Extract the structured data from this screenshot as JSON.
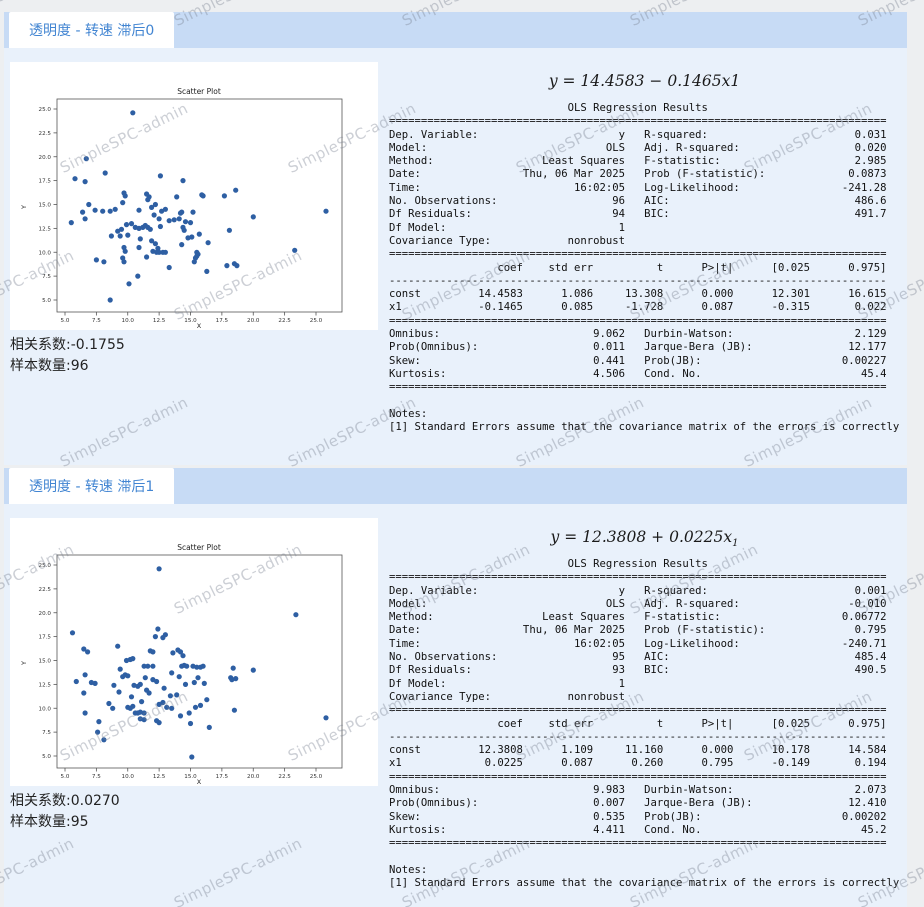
{
  "watermark": {
    "text": "SimpleSPC-admin"
  },
  "colors": {
    "accent_blue": "#4285d2",
    "tabbar_bg": "#c7dbf5",
    "panel_bg": "#e9f1fb",
    "dot": "#2e5fa3"
  },
  "sections": [
    {
      "tab_label": "透明度 - 转速 滞后0",
      "equation": {
        "main": "y = 14.4583 − 0.1465x1",
        "sub": ""
      },
      "correlation_text": "相关系数:-0.1755",
      "sample_text": "样本数量:96",
      "summary_lines": [
        "                            OLS Regression Results                            ",
        "==============================================================================",
        "Dep. Variable:                      y   R-squared:                       0.031",
        "Model:                            OLS   Adj. R-squared:                  0.020",
        "Method:                 Least Squares   F-statistic:                     2.985",
        "Date:                Thu, 06 Mar 2025   Prob (F-statistic):             0.0873",
        "Time:                        16:02:05   Log-Likelihood:                -241.28",
        "No. Observations:                  96   AIC:                             486.6",
        "Df Residuals:                      94   BIC:                             491.7",
        "Df Model:                           1                                         ",
        "Covariance Type:            nonrobust                                         ",
        "==============================================================================",
        "                 coef    std err          t      P>|t|      [0.025      0.975]",
        "------------------------------------------------------------------------------",
        "const         14.4583      1.086     13.308      0.000      12.301      16.615",
        "x1            -0.1465      0.085     -1.728      0.087      -0.315       0.022",
        "==============================================================================",
        "Omnibus:                        9.062   Durbin-Watson:                   2.129",
        "Prob(Omnibus):                  0.011   Jarque-Bera (JB):               12.177",
        "Skew:                           0.441   Prob(JB):                      0.00227",
        "Kurtosis:                       4.506   Cond. No.                         45.4",
        "==============================================================================",
        "",
        "Notes:",
        "[1] Standard Errors assume that the covariance matrix of the errors is correctly"
      ]
    },
    {
      "tab_label": "透明度 - 转速 滞后1",
      "equation": {
        "main": "y = 12.3808 + 0.0225x",
        "sub": "1"
      },
      "correlation_text": "相关系数:0.0270",
      "sample_text": "样本数量:95",
      "summary_lines": [
        "                            OLS Regression Results                            ",
        "==============================================================================",
        "Dep. Variable:                      y   R-squared:                       0.001",
        "Model:                            OLS   Adj. R-squared:                 -0.010",
        "Method:                 Least Squares   F-statistic:                   0.06772",
        "Date:                Thu, 06 Mar 2025   Prob (F-statistic):              0.795",
        "Time:                        16:02:05   Log-Likelihood:                -240.71",
        "No. Observations:                  95   AIC:                             485.4",
        "Df Residuals:                      93   BIC:                             490.5",
        "Df Model:                           1                                         ",
        "Covariance Type:            nonrobust                                         ",
        "==============================================================================",
        "                 coef    std err          t      P>|t|      [0.025      0.975]",
        "------------------------------------------------------------------------------",
        "const         12.3808      1.109     11.160      0.000      10.178      14.584",
        "x1             0.0225      0.087      0.260      0.795      -0.149       0.194",
        "==============================================================================",
        "Omnibus:                        9.983   Durbin-Watson:                   2.073",
        "Prob(Omnibus):                  0.007   Jarque-Bera (JB):               12.410",
        "Skew:                           0.535   Prob(JB):                      0.00202",
        "Kurtosis:                       4.411   Cond. No.                         45.2",
        "==============================================================================",
        "",
        "Notes:",
        "[1] Standard Errors assume that the covariance matrix of the errors is correctly"
      ]
    }
  ],
  "chart_data": [
    {
      "type": "scatter",
      "title": "Scatter Plot",
      "xlabel": "X",
      "ylabel": "Y",
      "xlim": [
        4,
        27
      ],
      "ylim": [
        4,
        26
      ],
      "xticks": [
        5.0,
        7.5,
        10.0,
        12.5,
        15.0,
        17.5,
        20.0,
        22.5,
        25.0
      ],
      "yticks": [
        5.0,
        7.5,
        10.0,
        12.5,
        15.0,
        17.5,
        20.0,
        22.5,
        25.0
      ],
      "points": [
        [
          10.4,
          24.6
        ],
        [
          6.7,
          19.8
        ],
        [
          5.8,
          17.7
        ],
        [
          6.6,
          17.4
        ],
        [
          8.2,
          18.3
        ],
        [
          12.6,
          18.0
        ],
        [
          14.4,
          17.5
        ],
        [
          18.6,
          16.5
        ],
        [
          15.9,
          16.0
        ],
        [
          17.7,
          15.9
        ],
        [
          9.7,
          16.2
        ],
        [
          9.8,
          15.9
        ],
        [
          11.5,
          16.1
        ],
        [
          11.7,
          15.8
        ],
        [
          11.6,
          15.5
        ],
        [
          13.9,
          15.8
        ],
        [
          12.2,
          15.0
        ],
        [
          11.9,
          14.7
        ],
        [
          6.9,
          15.0
        ],
        [
          6.4,
          14.2
        ],
        [
          7.4,
          14.4
        ],
        [
          8.0,
          14.3
        ],
        [
          8.6,
          14.3
        ],
        [
          9.0,
          14.5
        ],
        [
          9.6,
          15.2
        ],
        [
          10.9,
          14.4
        ],
        [
          12.7,
          14.3
        ],
        [
          13.0,
          14.5
        ],
        [
          14.3,
          14.2
        ],
        [
          15.2,
          14.2
        ],
        [
          5.5,
          13.1
        ],
        [
          6.6,
          13.5
        ],
        [
          12.1,
          13.9
        ],
        [
          12.5,
          13.5
        ],
        [
          13.3,
          13.3
        ],
        [
          13.7,
          13.4
        ],
        [
          14.1,
          13.5
        ],
        [
          14.6,
          13.2
        ],
        [
          15.0,
          13.1
        ],
        [
          20.0,
          13.7
        ],
        [
          25.8,
          14.3
        ],
        [
          18.1,
          12.3
        ],
        [
          9.9,
          12.9
        ],
        [
          10.3,
          13.0
        ],
        [
          10.9,
          12.5
        ],
        [
          11.2,
          12.6
        ],
        [
          11.4,
          12.8
        ],
        [
          11.6,
          12.6
        ],
        [
          11.8,
          12.4
        ],
        [
          12.6,
          12.7
        ],
        [
          14.4,
          12.6
        ],
        [
          14.5,
          12.3
        ],
        [
          15.7,
          11.9
        ],
        [
          15.1,
          11.6
        ],
        [
          14.8,
          11.5
        ],
        [
          9.2,
          12.2
        ],
        [
          9.5,
          12.4
        ],
        [
          10.0,
          11.8
        ],
        [
          8.7,
          11.7
        ],
        [
          9.4,
          11.7
        ],
        [
          11.0,
          11.4
        ],
        [
          11.9,
          11.2
        ],
        [
          12.2,
          10.9
        ],
        [
          12.4,
          10.4
        ],
        [
          14.3,
          10.8
        ],
        [
          16.4,
          11.0
        ],
        [
          12.0,
          10.1
        ],
        [
          12.3,
          10.0
        ],
        [
          12.5,
          10.0
        ],
        [
          12.8,
          10.0
        ],
        [
          13.0,
          10.0
        ],
        [
          11.5,
          9.5
        ],
        [
          9.7,
          10.5
        ],
        [
          9.8,
          10.1
        ],
        [
          10.9,
          10.5
        ],
        [
          15.5,
          10.0
        ],
        [
          15.6,
          9.8
        ],
        [
          15.5,
          9.6
        ],
        [
          15.4,
          9.4
        ],
        [
          15.3,
          9.0
        ],
        [
          7.5,
          9.2
        ],
        [
          8.1,
          9.0
        ],
        [
          9.6,
          9.4
        ],
        [
          9.7,
          9.0
        ],
        [
          23.3,
          10.2
        ],
        [
          17.9,
          8.6
        ],
        [
          18.5,
          8.8
        ],
        [
          18.7,
          8.6
        ],
        [
          13.3,
          8.4
        ],
        [
          16.3,
          8.0
        ],
        [
          10.8,
          7.5
        ],
        [
          10.1,
          6.7
        ],
        [
          8.6,
          5.0
        ],
        [
          16.0,
          15.9
        ],
        [
          14.2,
          14.1
        ],
        [
          10.6,
          12.6
        ]
      ]
    },
    {
      "type": "scatter",
      "title": "Scatter Plot",
      "xlabel": "X",
      "ylabel": "Y",
      "xlim": [
        4,
        27
      ],
      "ylim": [
        4,
        26
      ],
      "xticks": [
        5.0,
        7.5,
        10.0,
        12.5,
        15.0,
        17.5,
        20.0,
        22.5,
        25.0
      ],
      "yticks": [
        5.0,
        7.5,
        10.0,
        12.5,
        15.0,
        17.5,
        20.0,
        22.5,
        25.0
      ],
      "points": [
        [
          12.5,
          24.6
        ],
        [
          23.4,
          19.8
        ],
        [
          5.6,
          17.9
        ],
        [
          12.4,
          18.3
        ],
        [
          12.2,
          17.5
        ],
        [
          12.8,
          17.4
        ],
        [
          13.0,
          17.7
        ],
        [
          9.2,
          16.5
        ],
        [
          6.5,
          16.2
        ],
        [
          6.8,
          15.9
        ],
        [
          11.8,
          16.0
        ],
        [
          12.0,
          15.9
        ],
        [
          13.6,
          15.8
        ],
        [
          14.0,
          16.1
        ],
        [
          14.2,
          15.9
        ],
        [
          14.4,
          15.5
        ],
        [
          9.9,
          15.0
        ],
        [
          10.2,
          15.1
        ],
        [
          10.4,
          15.2
        ],
        [
          11.3,
          14.4
        ],
        [
          11.6,
          14.4
        ],
        [
          12.0,
          14.4
        ],
        [
          14.3,
          14.4
        ],
        [
          14.5,
          14.5
        ],
        [
          14.7,
          14.4
        ],
        [
          15.2,
          14.4
        ],
        [
          15.5,
          14.3
        ],
        [
          15.8,
          14.3
        ],
        [
          16.0,
          14.4
        ],
        [
          9.4,
          14.1
        ],
        [
          13.5,
          13.7
        ],
        [
          18.4,
          14.2
        ],
        [
          20.0,
          14.0
        ],
        [
          6.6,
          13.5
        ],
        [
          7.1,
          12.7
        ],
        [
          7.4,
          12.6
        ],
        [
          5.9,
          12.8
        ],
        [
          6.5,
          11.6
        ],
        [
          8.9,
          12.4
        ],
        [
          9.6,
          13.3
        ],
        [
          9.8,
          13.5
        ],
        [
          10.0,
          13.4
        ],
        [
          11.4,
          13.2
        ],
        [
          12.0,
          13.0
        ],
        [
          12.3,
          12.8
        ],
        [
          14.1,
          13.3
        ],
        [
          15.6,
          13.2
        ],
        [
          16.1,
          12.6
        ],
        [
          15.3,
          12.7
        ],
        [
          14.6,
          12.5
        ],
        [
          18.2,
          13.2
        ],
        [
          18.3,
          13.0
        ],
        [
          18.6,
          13.1
        ],
        [
          10.5,
          12.4
        ],
        [
          10.8,
          12.3
        ],
        [
          11.0,
          12.5
        ],
        [
          11.7,
          11.6
        ],
        [
          11.5,
          11.9
        ],
        [
          12.9,
          12.1
        ],
        [
          13.4,
          11.3
        ],
        [
          13.9,
          11.4
        ],
        [
          10.3,
          11.2
        ],
        [
          9.3,
          11.7
        ],
        [
          8.5,
          10.5
        ],
        [
          8.8,
          10.0
        ],
        [
          10.0,
          10.1
        ],
        [
          10.2,
          10.0
        ],
        [
          10.4,
          10.2
        ],
        [
          11.1,
          10.7
        ],
        [
          12.8,
          10.6
        ],
        [
          12.5,
          10.4
        ],
        [
          13.1,
          10.1
        ],
        [
          13.5,
          10.0
        ],
        [
          10.6,
          9.5
        ],
        [
          10.8,
          9.5
        ],
        [
          11.0,
          9.6
        ],
        [
          11.3,
          9.5
        ],
        [
          14.9,
          9.5
        ],
        [
          15.4,
          10.1
        ],
        [
          15.8,
          10.3
        ],
        [
          16.3,
          10.9
        ],
        [
          18.5,
          9.8
        ],
        [
          6.6,
          9.5
        ],
        [
          7.7,
          8.6
        ],
        [
          11.0,
          8.9
        ],
        [
          11.3,
          8.8
        ],
        [
          12.3,
          8.7
        ],
        [
          12.5,
          8.5
        ],
        [
          14.2,
          9.2
        ],
        [
          15.0,
          8.4
        ],
        [
          16.5,
          8.0
        ],
        [
          7.6,
          7.5
        ],
        [
          8.1,
          6.7
        ],
        [
          15.1,
          4.9
        ],
        [
          25.8,
          9.0
        ]
      ]
    }
  ]
}
